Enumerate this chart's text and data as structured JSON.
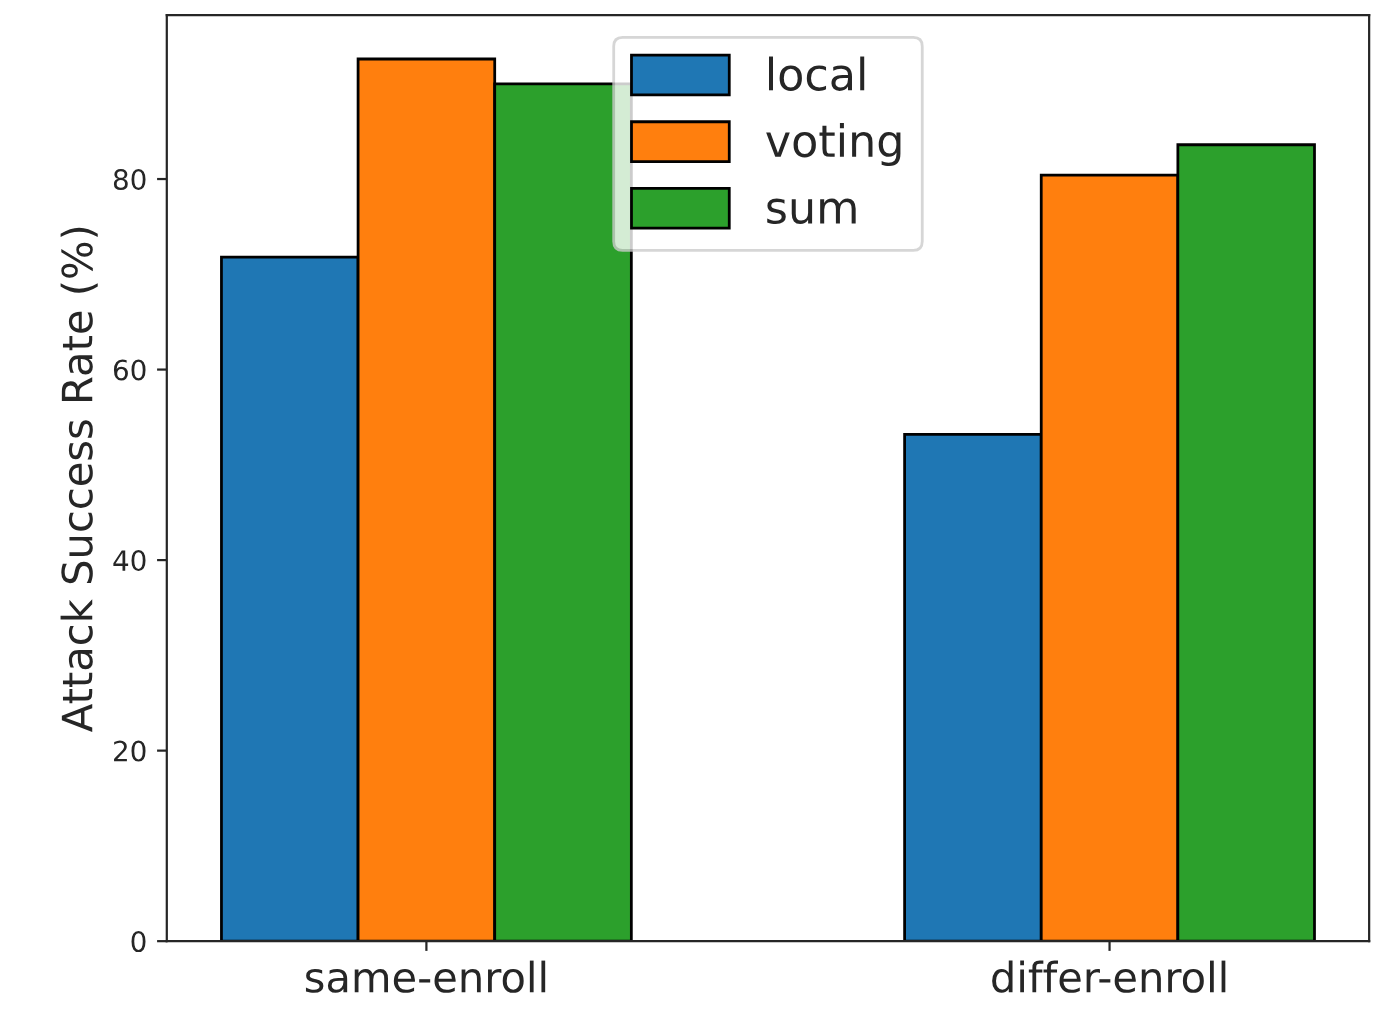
{
  "chart_data": {
    "type": "bar",
    "ylabel": "Attack Success Rate (%)",
    "categories": [
      "same-enroll",
      "differ-enroll"
    ],
    "series": [
      {
        "name": "local",
        "color": "#1f77b4",
        "values": [
          71.8,
          53.2
        ]
      },
      {
        "name": "voting",
        "color": "#ff7f0e",
        "values": [
          92.6,
          80.4
        ]
      },
      {
        "name": "sum",
        "color": "#2ca02c",
        "values": [
          90.0,
          83.6
        ]
      }
    ],
    "ylim": [
      0,
      97.2
    ],
    "yticks": [
      0,
      20,
      40,
      60,
      80
    ],
    "grid": false,
    "legend": "top"
  }
}
